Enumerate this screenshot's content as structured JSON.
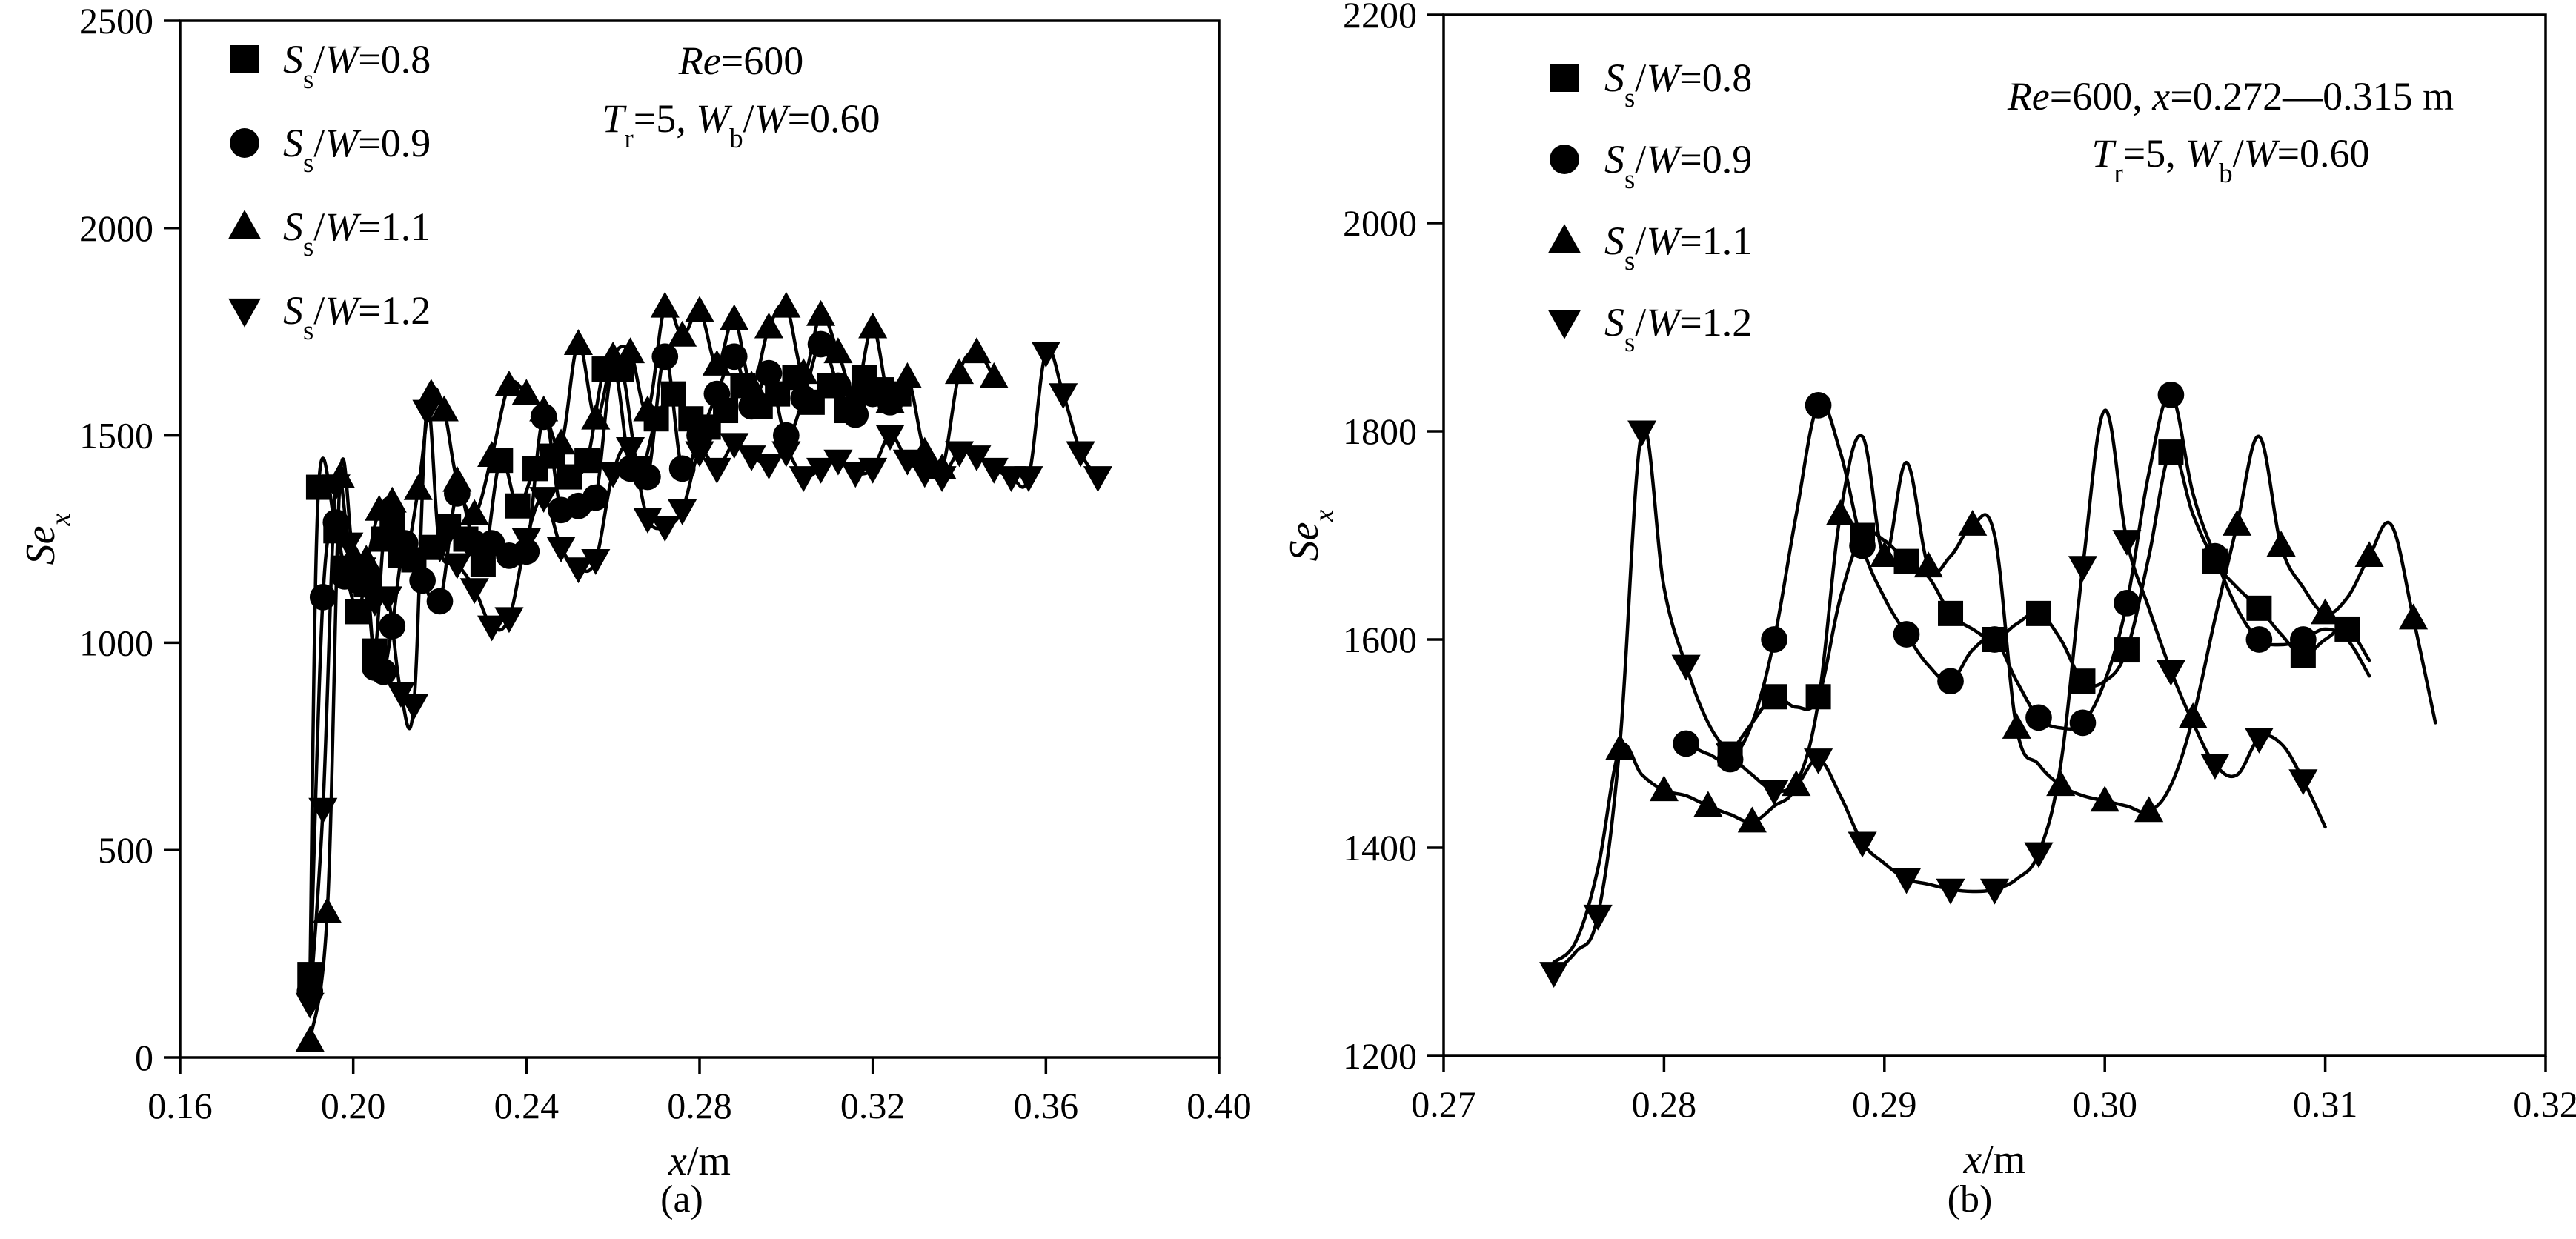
{
  "chart_data": [
    {
      "type": "line",
      "panel_label": "(a)",
      "xlabel": "x/m",
      "ylabel": "Se_x",
      "xlim": [
        0.16,
        0.4
      ],
      "ylim": [
        0,
        2500
      ],
      "xticks": [
        0.16,
        0.2,
        0.24,
        0.28,
        0.32,
        0.36,
        0.4
      ],
      "yticks": [
        0,
        500,
        1000,
        1500,
        2000,
        2500
      ],
      "xtick_labels": [
        "0.16",
        "0.20",
        "0.24",
        "0.28",
        "0.32",
        "0.36",
        "0.40"
      ],
      "ytick_labels": [
        "0",
        "500",
        "1000",
        "1500",
        "2000",
        "2500"
      ],
      "annotation": [
        "Re=600",
        "Tr=5, Wb/W=0.60"
      ],
      "legend_position": "top-left",
      "series": [
        {
          "name": "Ss/W=0.8",
          "marker": "square",
          "x": [
            0.19,
            0.192,
            0.196,
            0.198,
            0.201,
            0.203,
            0.205,
            0.207,
            0.209,
            0.211,
            0.214,
            0.218,
            0.222,
            0.226,
            0.23,
            0.234,
            0.238,
            0.242,
            0.246,
            0.25,
            0.254,
            0.258,
            0.262,
            0.266,
            0.27,
            0.274,
            0.278,
            0.282,
            0.286,
            0.29,
            0.294,
            0.298,
            0.302,
            0.306,
            0.31,
            0.314,
            0.318,
            0.322,
            0.326
          ],
          "y": [
            200,
            1375,
            1270,
            1180,
            1075,
            1140,
            980,
            1250,
            1290,
            1210,
            1200,
            1230,
            1280,
            1250,
            1190,
            1440,
            1330,
            1420,
            1450,
            1400,
            1440,
            1660,
            1660,
            1420,
            1540,
            1600,
            1540,
            1520,
            1560,
            1620,
            1570,
            1600,
            1640,
            1580,
            1620,
            1560,
            1640,
            1610,
            1600
          ]
        },
        {
          "name": "Ss/W=0.9",
          "marker": "circle",
          "x": [
            0.19,
            0.193,
            0.196,
            0.198,
            0.201,
            0.203,
            0.205,
            0.207,
            0.209,
            0.212,
            0.216,
            0.22,
            0.224,
            0.228,
            0.232,
            0.236,
            0.24,
            0.244,
            0.248,
            0.252,
            0.256,
            0.26,
            0.264,
            0.268,
            0.272,
            0.276,
            0.28,
            0.284,
            0.288,
            0.292,
            0.296,
            0.3,
            0.304,
            0.308,
            0.312,
            0.316,
            0.32,
            0.324
          ],
          "y": [
            160,
            1110,
            1290,
            1160,
            1150,
            1170,
            940,
            930,
            1040,
            1240,
            1150,
            1100,
            1360,
            1240,
            1240,
            1210,
            1220,
            1545,
            1320,
            1330,
            1350,
            1660,
            1420,
            1400,
            1690,
            1420,
            1500,
            1600,
            1690,
            1570,
            1650,
            1500,
            1590,
            1720,
            1620,
            1550,
            1600,
            1580
          ]
        },
        {
          "name": "Ss/W=1.1",
          "marker": "triangle-up",
          "x": [
            0.19,
            0.194,
            0.197,
            0.2,
            0.203,
            0.206,
            0.209,
            0.212,
            0.215,
            0.218,
            0.221,
            0.224,
            0.228,
            0.232,
            0.236,
            0.24,
            0.244,
            0.248,
            0.252,
            0.256,
            0.26,
            0.264,
            0.268,
            0.272,
            0.276,
            0.28,
            0.284,
            0.288,
            0.292,
            0.296,
            0.3,
            0.304,
            0.308,
            0.312,
            0.316,
            0.32,
            0.324,
            0.328,
            0.332,
            0.336,
            0.34,
            0.344,
            0.348
          ],
          "y": [
            40,
            350,
            1400,
            1210,
            1200,
            1320,
            1340,
            1220,
            1370,
            1600,
            1560,
            1390,
            1310,
            1450,
            1620,
            1600,
            1560,
            1480,
            1720,
            1540,
            1690,
            1700,
            1560,
            1810,
            1740,
            1800,
            1670,
            1780,
            1620,
            1760,
            1810,
            1650,
            1790,
            1700,
            1600,
            1760,
            1580,
            1640,
            1460,
            1420,
            1650,
            1700,
            1640
          ]
        },
        {
          "name": "Ss/W=1.2",
          "marker": "triangle-down",
          "x": [
            0.19,
            0.193,
            0.196,
            0.199,
            0.202,
            0.205,
            0.208,
            0.211,
            0.214,
            0.217,
            0.22,
            0.224,
            0.228,
            0.232,
            0.236,
            0.24,
            0.244,
            0.248,
            0.252,
            0.256,
            0.26,
            0.264,
            0.268,
            0.272,
            0.276,
            0.28,
            0.284,
            0.288,
            0.292,
            0.296,
            0.3,
            0.304,
            0.308,
            0.312,
            0.316,
            0.32,
            0.324,
            0.328,
            0.332,
            0.336,
            0.34,
            0.344,
            0.348,
            0.352,
            0.356,
            0.36,
            0.364,
            0.368,
            0.372
          ],
          "y": [
            130,
            600,
            1380,
            1240,
            1180,
            1100,
            1110,
            880,
            850,
            1560,
            1230,
            1190,
            1130,
            1040,
            1060,
            1250,
            1350,
            1230,
            1180,
            1200,
            1410,
            1470,
            1300,
            1280,
            1320,
            1460,
            1420,
            1480,
            1450,
            1430,
            1460,
            1400,
            1420,
            1440,
            1410,
            1420,
            1500,
            1440,
            1410,
            1400,
            1460,
            1450,
            1420,
            1400,
            1400,
            1700,
            1600,
            1460,
            1400
          ]
        }
      ]
    },
    {
      "type": "line",
      "panel_label": "(b)",
      "xlabel": "x/m",
      "ylabel": "Se_x",
      "xlim": [
        0.27,
        0.32
      ],
      "ylim": [
        1200,
        2200
      ],
      "xticks": [
        0.27,
        0.28,
        0.29,
        0.3,
        0.31,
        0.32
      ],
      "yticks": [
        1200,
        1400,
        1600,
        1800,
        2000,
        2200
      ],
      "xtick_labels": [
        "0.27",
        "0.28",
        "0.29",
        "0.30",
        "0.31",
        "0.32"
      ],
      "ytick_labels": [
        "1200",
        "1400",
        "1600",
        "1800",
        "2000",
        "2200"
      ],
      "annotation": [
        "Re=600, x=0.272—0.315 m",
        "Tr=5, Wb/W=0.60"
      ],
      "legend_position": "top-left",
      "series": [
        {
          "name": "Ss/W=0.8",
          "marker": "square",
          "x": [
            0.283,
            0.285,
            0.287,
            0.289,
            0.291,
            0.293,
            0.295,
            0.297,
            0.299,
            0.301,
            0.303,
            0.305,
            0.307,
            0.309,
            0.311
          ],
          "y": [
            1490,
            1545,
            1545,
            1700,
            1675,
            1625,
            1600,
            1625,
            1560,
            1590,
            1780,
            1675,
            1630,
            1585,
            1610
          ],
          "line_x": [
            0.283,
            0.284,
            0.285,
            0.286,
            0.287,
            0.288,
            0.289,
            0.29,
            0.291,
            0.292,
            0.293,
            0.294,
            0.295,
            0.296,
            0.297,
            0.298,
            0.299,
            0.3,
            0.301,
            0.302,
            0.303,
            0.304,
            0.305,
            0.306,
            0.307,
            0.308,
            0.309,
            0.31,
            0.311,
            0.312
          ],
          "line_y": [
            1490,
            1520,
            1545,
            1535,
            1545,
            1640,
            1700,
            1695,
            1675,
            1660,
            1625,
            1610,
            1600,
            1615,
            1625,
            1600,
            1560,
            1560,
            1590,
            1680,
            1780,
            1720,
            1675,
            1650,
            1630,
            1605,
            1585,
            1600,
            1610,
            1580
          ]
        },
        {
          "name": "Ss/W=0.9",
          "marker": "circle",
          "x": [
            0.281,
            0.283,
            0.285,
            0.287,
            0.289,
            0.291,
            0.293,
            0.295,
            0.297,
            0.299,
            0.301,
            0.303,
            0.305,
            0.307,
            0.309
          ],
          "y": [
            1500,
            1485,
            1600,
            1825,
            1690,
            1605,
            1560,
            1600,
            1525,
            1520,
            1635,
            1835,
            1680,
            1600,
            1600
          ],
          "line_x": [
            0.281,
            0.282,
            0.283,
            0.284,
            0.285,
            0.286,
            0.287,
            0.288,
            0.289,
            0.29,
            0.291,
            0.292,
            0.293,
            0.294,
            0.295,
            0.296,
            0.297,
            0.298,
            0.299,
            0.3,
            0.301,
            0.302,
            0.303,
            0.304,
            0.305,
            0.306,
            0.307,
            0.308,
            0.309,
            0.31,
            0.311,
            0.312
          ],
          "line_y": [
            1500,
            1490,
            1485,
            1520,
            1600,
            1720,
            1825,
            1780,
            1690,
            1640,
            1605,
            1575,
            1560,
            1590,
            1600,
            1560,
            1525,
            1515,
            1520,
            1560,
            1635,
            1760,
            1835,
            1740,
            1680,
            1630,
            1600,
            1595,
            1600,
            1610,
            1600,
            1565
          ]
        },
        {
          "name": "Ss/W=1.1",
          "marker": "triangle-up",
          "x": [
            0.278,
            0.28,
            0.282,
            0.284,
            0.286,
            0.288,
            0.29,
            0.292,
            0.294,
            0.296,
            0.298,
            0.3,
            0.302,
            0.304,
            0.306,
            0.308,
            0.31,
            0.312,
            0.314
          ],
          "y": [
            1495,
            1455,
            1440,
            1425,
            1460,
            1720,
            1680,
            1670,
            1710,
            1515,
            1460,
            1445,
            1435,
            1525,
            1710,
            1690,
            1625,
            1680,
            1620
          ],
          "line_x": [
            0.275,
            0.276,
            0.277,
            0.278,
            0.279,
            0.28,
            0.281,
            0.282,
            0.283,
            0.284,
            0.285,
            0.286,
            0.287,
            0.288,
            0.289,
            0.29,
            0.291,
            0.292,
            0.293,
            0.294,
            0.295,
            0.296,
            0.297,
            0.298,
            0.299,
            0.3,
            0.301,
            0.302,
            0.303,
            0.304,
            0.305,
            0.306,
            0.307,
            0.308,
            0.309,
            0.31,
            0.311,
            0.312,
            0.313,
            0.314,
            0.315
          ],
          "line_y": [
            1290,
            1310,
            1380,
            1495,
            1470,
            1455,
            1450,
            1440,
            1432,
            1425,
            1440,
            1460,
            1540,
            1720,
            1795,
            1680,
            1770,
            1670,
            1680,
            1710,
            1700,
            1515,
            1480,
            1460,
            1450,
            1445,
            1440,
            1435,
            1460,
            1525,
            1620,
            1710,
            1795,
            1690,
            1650,
            1625,
            1640,
            1680,
            1710,
            1620,
            1520
          ]
        },
        {
          "name": "Ss/W=1.2",
          "marker": "triangle-down",
          "x": [
            0.275,
            0.277,
            0.279,
            0.281,
            0.283,
            0.285,
            0.287,
            0.289,
            0.291,
            0.293,
            0.295,
            0.297,
            0.299,
            0.301,
            0.303,
            0.305,
            0.307,
            0.309
          ],
          "y": [
            1280,
            1335,
            1800,
            1575,
            1490,
            1455,
            1485,
            1405,
            1370,
            1360,
            1360,
            1395,
            1670,
            1695,
            1570,
            1480,
            1505,
            1465
          ],
          "line_x": [
            0.275,
            0.276,
            0.277,
            0.278,
            0.279,
            0.28,
            0.281,
            0.282,
            0.283,
            0.284,
            0.285,
            0.286,
            0.287,
            0.288,
            0.289,
            0.29,
            0.291,
            0.292,
            0.293,
            0.294,
            0.295,
            0.296,
            0.297,
            0.298,
            0.299,
            0.3,
            0.301,
            0.302,
            0.303,
            0.304,
            0.305,
            0.306,
            0.307,
            0.308,
            0.309,
            0.31
          ],
          "line_y": [
            1280,
            1300,
            1335,
            1500,
            1800,
            1650,
            1575,
            1520,
            1490,
            1470,
            1455,
            1460,
            1485,
            1450,
            1405,
            1385,
            1370,
            1365,
            1360,
            1358,
            1360,
            1370,
            1395,
            1480,
            1670,
            1820,
            1695,
            1630,
            1570,
            1520,
            1480,
            1470,
            1505,
            1500,
            1465,
            1420
          ]
        }
      ]
    }
  ]
}
